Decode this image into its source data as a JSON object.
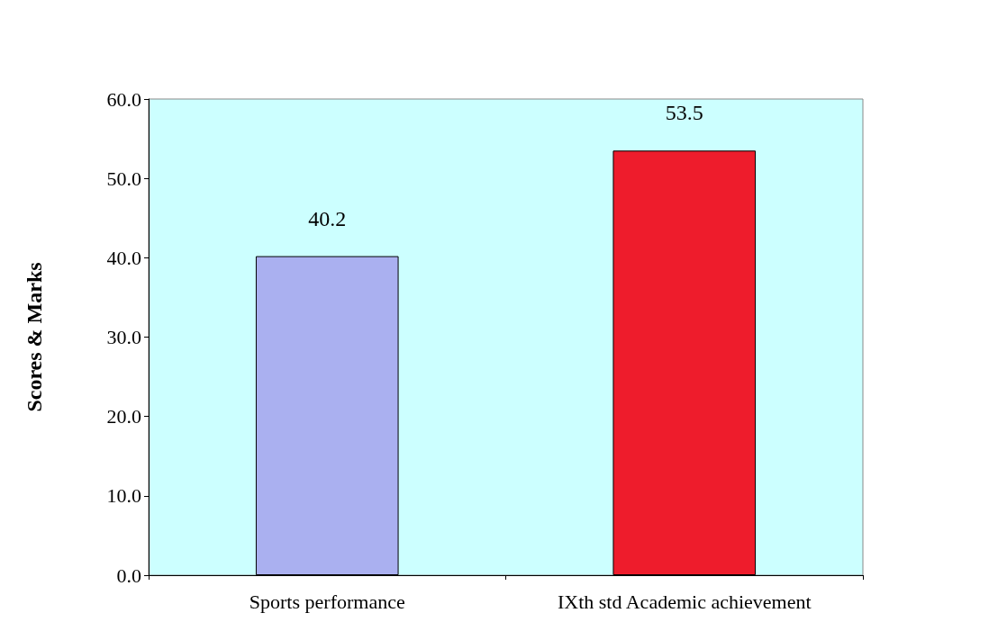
{
  "chart_data": {
    "type": "bar",
    "ylabel": "Scores & Marks",
    "categories": [
      "Sports performance",
      "IXth std Academic achievement"
    ],
    "values": [
      40.2,
      53.5
    ],
    "colors": [
      "#aab0f0",
      "#ee1c2c"
    ],
    "ylim": [
      0,
      60
    ],
    "yticks": [
      {
        "value": 0,
        "label": "0.0"
      },
      {
        "value": 10,
        "label": "10.0"
      },
      {
        "value": 20,
        "label": "20.0"
      },
      {
        "value": 30,
        "label": "30.0"
      },
      {
        "value": 40,
        "label": "40.0"
      },
      {
        "value": 50,
        "label": "50.0"
      },
      {
        "value": 60,
        "label": "60.0"
      }
    ],
    "data_labels": true,
    "grid": false
  }
}
